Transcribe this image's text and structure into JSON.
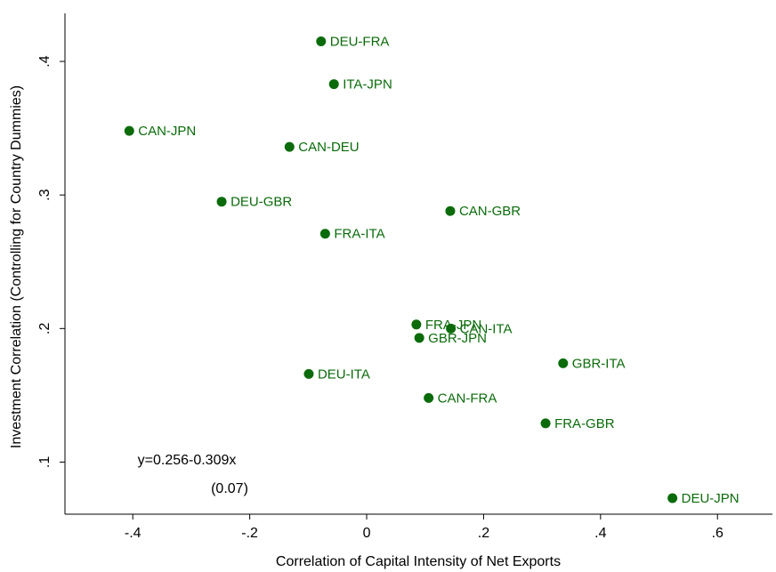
{
  "chart_data": {
    "type": "scatter",
    "xlabel": "Correlation of Capital Intensity of Net Exports",
    "ylabel": "Investment Correlation (Controlling for Country Dummies)",
    "point_labels": [
      "DEU-FRA",
      "ITA-JPN",
      "CAN-JPN",
      "CAN-DEU",
      "DEU-GBR",
      "CAN-GBR",
      "FRA-ITA",
      "FRA-JPN",
      "CAN-ITA",
      "GBR-JPN",
      "GBR-ITA",
      "DEU-ITA",
      "CAN-FRA",
      "FRA-GBR",
      "DEU-JPN"
    ],
    "x": [
      -0.078,
      -0.056,
      -0.406,
      -0.132,
      -0.248,
      0.143,
      -0.071,
      0.085,
      0.144,
      0.09,
      0.336,
      -0.099,
      0.106,
      0.306,
      0.523
    ],
    "values": [
      0.415,
      0.383,
      0.348,
      0.336,
      0.295,
      0.288,
      0.271,
      0.203,
      0.2,
      0.193,
      0.174,
      0.166,
      0.148,
      0.129,
      0.073
    ],
    "color": "#0b6b0b",
    "annotations": [
      "y=0.256-0.309x",
      "(0.07)"
    ],
    "xlim": [
      -0.516,
      0.694
    ],
    "ylim": [
      0.061,
      0.436
    ],
    "xticks": [
      {
        "value": -0.4,
        "label": "-.4"
      },
      {
        "value": -0.2,
        "label": "-.2"
      },
      0,
      {
        "value": 0.2,
        "label": ".2"
      },
      {
        "value": 0.4,
        "label": ".4"
      },
      {
        "value": 0.6,
        "label": ".6"
      }
    ],
    "yticks": [
      {
        "value": 0.1,
        "label": ".1"
      },
      {
        "value": 0.2,
        "label": ".2"
      },
      {
        "value": 0.3,
        "label": ".3"
      },
      {
        "value": 0.4,
        "label": ".4"
      }
    ]
  }
}
